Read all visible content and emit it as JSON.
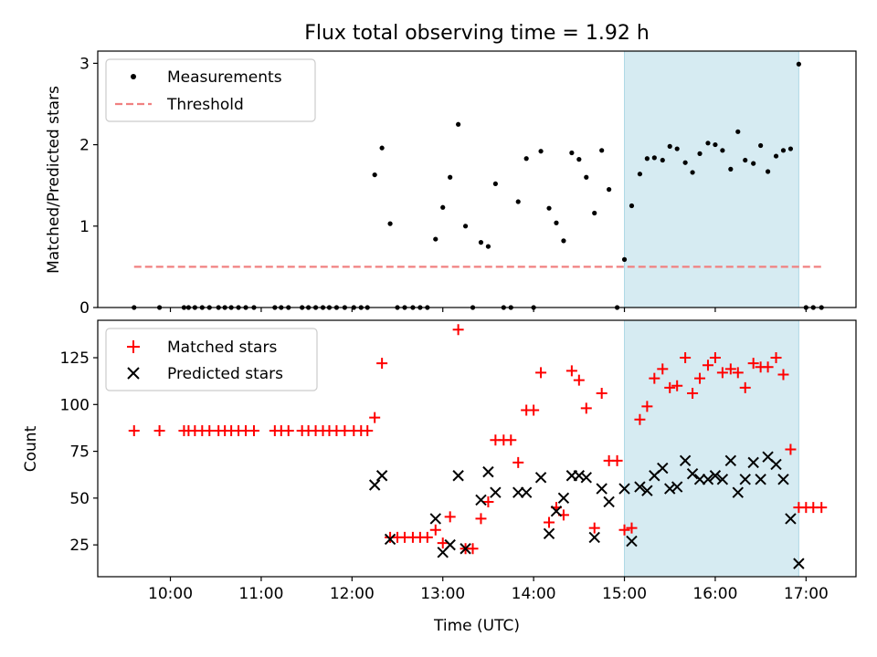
{
  "colors": {
    "measurement": "#000000",
    "threshold": "#f08080",
    "matched": "#ff0000",
    "predicted": "#000000",
    "highlight": "#add8e6"
  },
  "chart_data": [
    {
      "type": "scatter",
      "title": "Flux total observing time = 1.92 h",
      "xlabel": "",
      "ylabel": "Matched/Predicted stars",
      "xlim": [
        9.2,
        17.55
      ],
      "ylim": [
        0,
        3.15
      ],
      "x_ticks": [
        10,
        11,
        12,
        13,
        14,
        15,
        16,
        17
      ],
      "y_ticks": [
        0,
        1,
        2,
        3
      ],
      "y_tick_labels": [
        "0",
        "1",
        "2",
        "3"
      ],
      "highlight_span": [
        15.0,
        16.92
      ],
      "legend": [
        "Measurements",
        "Threshold"
      ],
      "threshold": {
        "name": "Threshold",
        "value": 0.5,
        "x_range": [
          9.6,
          17.17
        ]
      },
      "series": [
        {
          "name": "Measurements",
          "points": [
            [
              9.6,
              0
            ],
            [
              9.88,
              0
            ],
            [
              10.15,
              0
            ],
            [
              10.2,
              0
            ],
            [
              10.27,
              0
            ],
            [
              10.35,
              0
            ],
            [
              10.43,
              0
            ],
            [
              10.53,
              0
            ],
            [
              10.6,
              0
            ],
            [
              10.67,
              0
            ],
            [
              10.75,
              0
            ],
            [
              10.83,
              0
            ],
            [
              10.92,
              0
            ],
            [
              11.15,
              0
            ],
            [
              11.22,
              0
            ],
            [
              11.3,
              0
            ],
            [
              11.45,
              0
            ],
            [
              11.52,
              0
            ],
            [
              11.6,
              0
            ],
            [
              11.68,
              0
            ],
            [
              11.75,
              0
            ],
            [
              11.83,
              0
            ],
            [
              11.92,
              0
            ],
            [
              12.02,
              0
            ],
            [
              12.1,
              0
            ],
            [
              12.17,
              0
            ],
            [
              12.25,
              1.63
            ],
            [
              12.33,
              1.96
            ],
            [
              12.42,
              1.03
            ],
            [
              12.5,
              0
            ],
            [
              12.58,
              0
            ],
            [
              12.67,
              0
            ],
            [
              12.75,
              0
            ],
            [
              12.83,
              0
            ],
            [
              12.92,
              0.84
            ],
            [
              13.0,
              1.23
            ],
            [
              13.08,
              1.6
            ],
            [
              13.17,
              2.25
            ],
            [
              13.25,
              1.0
            ],
            [
              13.33,
              0
            ],
            [
              13.42,
              0.8
            ],
            [
              13.5,
              0.75
            ],
            [
              13.58,
              1.52
            ],
            [
              13.67,
              0
            ],
            [
              13.75,
              0
            ],
            [
              13.83,
              1.3
            ],
            [
              13.92,
              1.83
            ],
            [
              14.0,
              0
            ],
            [
              14.08,
              1.92
            ],
            [
              14.17,
              1.22
            ],
            [
              14.25,
              1.04
            ],
            [
              14.33,
              0.82
            ],
            [
              14.42,
              1.9
            ],
            [
              14.5,
              1.82
            ],
            [
              14.58,
              1.6
            ],
            [
              14.67,
              1.16
            ],
            [
              14.75,
              1.93
            ],
            [
              14.83,
              1.45
            ],
            [
              14.92,
              0
            ],
            [
              15.0,
              0.59
            ],
            [
              15.08,
              1.25
            ],
            [
              15.17,
              1.64
            ],
            [
              15.25,
              1.83
            ],
            [
              15.33,
              1.84
            ],
            [
              15.42,
              1.81
            ],
            [
              15.5,
              1.98
            ],
            [
              15.58,
              1.95
            ],
            [
              15.67,
              1.78
            ],
            [
              15.75,
              1.66
            ],
            [
              15.83,
              1.89
            ],
            [
              15.92,
              2.02
            ],
            [
              16.0,
              2.0
            ],
            [
              16.08,
              1.93
            ],
            [
              16.17,
              1.7
            ],
            [
              16.25,
              2.16
            ],
            [
              16.33,
              1.81
            ],
            [
              16.42,
              1.77
            ],
            [
              16.5,
              1.99
            ],
            [
              16.58,
              1.67
            ],
            [
              16.67,
              1.86
            ],
            [
              16.75,
              1.93
            ],
            [
              16.83,
              1.95
            ],
            [
              16.92,
              2.99
            ],
            [
              17.0,
              0
            ],
            [
              17.08,
              0
            ],
            [
              17.17,
              0
            ]
          ]
        }
      ]
    },
    {
      "type": "scatter",
      "title": "",
      "xlabel": "Time (UTC)",
      "ylabel": "Count",
      "xlim": [
        9.2,
        17.55
      ],
      "ylim": [
        8,
        145
      ],
      "x_ticks": [
        10,
        11,
        12,
        13,
        14,
        15,
        16,
        17
      ],
      "x_tick_labels": [
        "10:00",
        "11:00",
        "12:00",
        "13:00",
        "14:00",
        "15:00",
        "16:00",
        "17:00"
      ],
      "y_ticks": [
        25,
        50,
        75,
        100,
        125
      ],
      "y_tick_labels": [
        "25",
        "50",
        "75",
        "100",
        "125"
      ],
      "highlight_span": [
        15.0,
        16.92
      ],
      "legend": [
        "Matched stars",
        "Predicted stars"
      ],
      "series": [
        {
          "name": "Matched stars",
          "marker": "plus",
          "points": [
            [
              9.6,
              86
            ],
            [
              9.88,
              86
            ],
            [
              10.15,
              86
            ],
            [
              10.2,
              86
            ],
            [
              10.27,
              86
            ],
            [
              10.35,
              86
            ],
            [
              10.43,
              86
            ],
            [
              10.53,
              86
            ],
            [
              10.6,
              86
            ],
            [
              10.67,
              86
            ],
            [
              10.75,
              86
            ],
            [
              10.83,
              86
            ],
            [
              10.92,
              86
            ],
            [
              11.15,
              86
            ],
            [
              11.22,
              86
            ],
            [
              11.3,
              86
            ],
            [
              11.45,
              86
            ],
            [
              11.52,
              86
            ],
            [
              11.6,
              86
            ],
            [
              11.68,
              86
            ],
            [
              11.75,
              86
            ],
            [
              11.83,
              86
            ],
            [
              11.92,
              86
            ],
            [
              12.02,
              86
            ],
            [
              12.1,
              86
            ],
            [
              12.17,
              86
            ],
            [
              12.25,
              93
            ],
            [
              12.33,
              122
            ],
            [
              12.42,
              29
            ],
            [
              12.5,
              29
            ],
            [
              12.58,
              29
            ],
            [
              12.67,
              29
            ],
            [
              12.75,
              29
            ],
            [
              12.83,
              29
            ],
            [
              12.92,
              33
            ],
            [
              13.0,
              26
            ],
            [
              13.08,
              40
            ],
            [
              13.17,
              140
            ],
            [
              13.25,
              23
            ],
            [
              13.33,
              23
            ],
            [
              13.42,
              39
            ],
            [
              13.5,
              48
            ],
            [
              13.58,
              81
            ],
            [
              13.67,
              81
            ],
            [
              13.75,
              81
            ],
            [
              13.83,
              69
            ],
            [
              13.92,
              97
            ],
            [
              14.0,
              97
            ],
            [
              14.08,
              117
            ],
            [
              14.17,
              37
            ],
            [
              14.25,
              45
            ],
            [
              14.33,
              41
            ],
            [
              14.42,
              118
            ],
            [
              14.5,
              113
            ],
            [
              14.58,
              98
            ],
            [
              14.67,
              34
            ],
            [
              14.75,
              106
            ],
            [
              14.83,
              70
            ],
            [
              14.92,
              70
            ],
            [
              15.0,
              33
            ],
            [
              15.08,
              34
            ],
            [
              15.17,
              92
            ],
            [
              15.25,
              99
            ],
            [
              15.33,
              114
            ],
            [
              15.42,
              119
            ],
            [
              15.5,
              109
            ],
            [
              15.58,
              110
            ],
            [
              15.67,
              125
            ],
            [
              15.75,
              106
            ],
            [
              15.83,
              114
            ],
            [
              15.92,
              121
            ],
            [
              16.0,
              125
            ],
            [
              16.08,
              117
            ],
            [
              16.17,
              119
            ],
            [
              16.25,
              117
            ],
            [
              16.33,
              109
            ],
            [
              16.42,
              122
            ],
            [
              16.5,
              120
            ],
            [
              16.58,
              120
            ],
            [
              16.67,
              125
            ],
            [
              16.75,
              116
            ],
            [
              16.83,
              76
            ],
            [
              16.92,
              45
            ],
            [
              17.0,
              45
            ],
            [
              17.08,
              45
            ],
            [
              17.17,
              45
            ]
          ]
        },
        {
          "name": "Predicted stars",
          "marker": "x",
          "points": [
            [
              12.25,
              57
            ],
            [
              12.33,
              62
            ],
            [
              12.42,
              28
            ],
            [
              12.92,
              39
            ],
            [
              13.0,
              21
            ],
            [
              13.08,
              25
            ],
            [
              13.17,
              62
            ],
            [
              13.25,
              23
            ],
            [
              13.42,
              49
            ],
            [
              13.5,
              64
            ],
            [
              13.58,
              53
            ],
            [
              13.83,
              53
            ],
            [
              13.92,
              53
            ],
            [
              14.08,
              61
            ],
            [
              14.17,
              31
            ],
            [
              14.25,
              43
            ],
            [
              14.33,
              50
            ],
            [
              14.42,
              62
            ],
            [
              14.5,
              62
            ],
            [
              14.58,
              61
            ],
            [
              14.67,
              29
            ],
            [
              14.75,
              55
            ],
            [
              14.83,
              48
            ],
            [
              15.0,
              55
            ],
            [
              15.08,
              27
            ],
            [
              15.17,
              56
            ],
            [
              15.25,
              54
            ],
            [
              15.33,
              62
            ],
            [
              15.42,
              66
            ],
            [
              15.5,
              55
            ],
            [
              15.58,
              56
            ],
            [
              15.67,
              70
            ],
            [
              15.75,
              63
            ],
            [
              15.83,
              60
            ],
            [
              15.92,
              60
            ],
            [
              16.0,
              62
            ],
            [
              16.08,
              60
            ],
            [
              16.17,
              70
            ],
            [
              16.25,
              53
            ],
            [
              16.33,
              60
            ],
            [
              16.42,
              69
            ],
            [
              16.5,
              60
            ],
            [
              16.58,
              72
            ],
            [
              16.67,
              68
            ],
            [
              16.75,
              60
            ],
            [
              16.83,
              39
            ],
            [
              16.92,
              15
            ]
          ]
        }
      ]
    }
  ]
}
